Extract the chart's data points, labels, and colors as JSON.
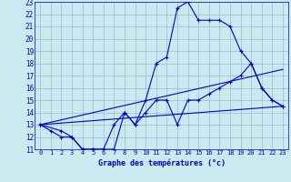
{
  "xlabel": "Graphe des températures (°c)",
  "background_color": "#cce8f0",
  "line_color": "#0000cc",
  "grid_color": "#99bbcc",
  "xlim": [
    -0.5,
    23.5
  ],
  "ylim": [
    11,
    23
  ],
  "xticks": [
    0,
    1,
    2,
    3,
    4,
    5,
    6,
    7,
    8,
    9,
    10,
    11,
    12,
    13,
    14,
    15,
    16,
    17,
    18,
    19,
    20,
    21,
    22,
    23
  ],
  "yticks": [
    11,
    12,
    13,
    14,
    15,
    16,
    17,
    18,
    19,
    20,
    21,
    22,
    23
  ],
  "line1_x": [
    0,
    1,
    2,
    3,
    4,
    5,
    6,
    7,
    8,
    9,
    10,
    11,
    12,
    13,
    14,
    15,
    16,
    17,
    18,
    19,
    20,
    21,
    22,
    23
  ],
  "line1_y": [
    13.0,
    12.5,
    12.0,
    12.0,
    11.0,
    11.0,
    11.0,
    11.0,
    14.0,
    13.0,
    15.0,
    18.0,
    18.5,
    22.5,
    23.0,
    21.5,
    21.5,
    21.5,
    21.0,
    19.0,
    18.0,
    16.0,
    15.0,
    14.5
  ],
  "line2_x": [
    0,
    2,
    3,
    4,
    5,
    6,
    7,
    8,
    9,
    10,
    11,
    12,
    13,
    14,
    15,
    16,
    17,
    18,
    19,
    20,
    21,
    22,
    23
  ],
  "line2_y": [
    13.0,
    12.5,
    12.0,
    11.0,
    11.0,
    11.0,
    13.0,
    14.0,
    13.0,
    14.0,
    15.0,
    15.0,
    13.0,
    15.0,
    15.0,
    15.5,
    16.0,
    16.5,
    17.0,
    18.0,
    16.0,
    15.0,
    14.5
  ],
  "line3_x": [
    0,
    23
  ],
  "line3_y": [
    13.0,
    17.5
  ],
  "line4_x": [
    0,
    23
  ],
  "line4_y": [
    13.0,
    14.5
  ],
  "marker": "+"
}
